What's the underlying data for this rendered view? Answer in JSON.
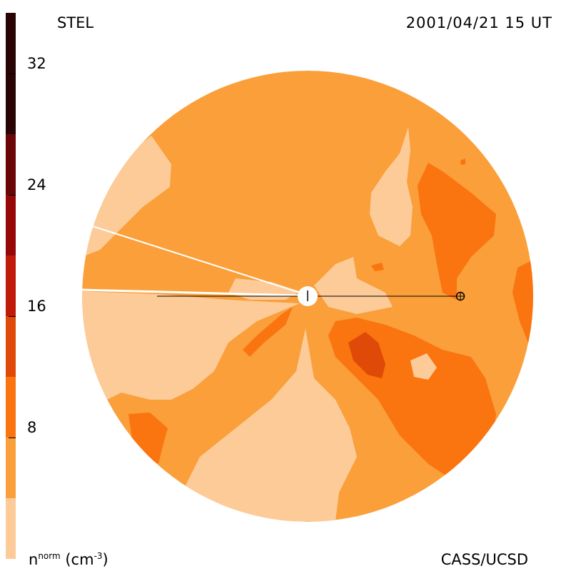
{
  "header": {
    "observatory": "STEL",
    "timestamp": "2001/04/21 15 UT"
  },
  "footer": {
    "credit": "CASS/UCSD",
    "units_base": "n",
    "units_sup": "norm",
    "units_rest": " (cm",
    "units_exp": "-3",
    "units_close": ")"
  },
  "colorbar": {
    "ticks": [
      "32",
      "24",
      "16",
      "8"
    ],
    "levels": [
      {
        "from": 0,
        "to": 4,
        "color": "#fccb98"
      },
      {
        "from": 4,
        "to": 8,
        "color": "#fa9f3a"
      },
      {
        "from": 8,
        "to": 12,
        "color": "#fa7410"
      },
      {
        "from": 12,
        "to": 16,
        "color": "#e04a08"
      },
      {
        "from": 16,
        "to": 20,
        "color": "#c01a0a"
      },
      {
        "from": 20,
        "to": 24,
        "color": "#960808"
      },
      {
        "from": 24,
        "to": 28,
        "color": "#6a0606"
      },
      {
        "from": 28,
        "to": 36,
        "color": "#280404"
      }
    ]
  },
  "map": {
    "colors": {
      "background": "#fa9f3a",
      "low": "#fccb98",
      "mid": "#fa7410",
      "high": "#e04a08"
    },
    "sun_icon": "sun-disk-icon",
    "earth_icon": "earth-crosshair-icon"
  }
}
